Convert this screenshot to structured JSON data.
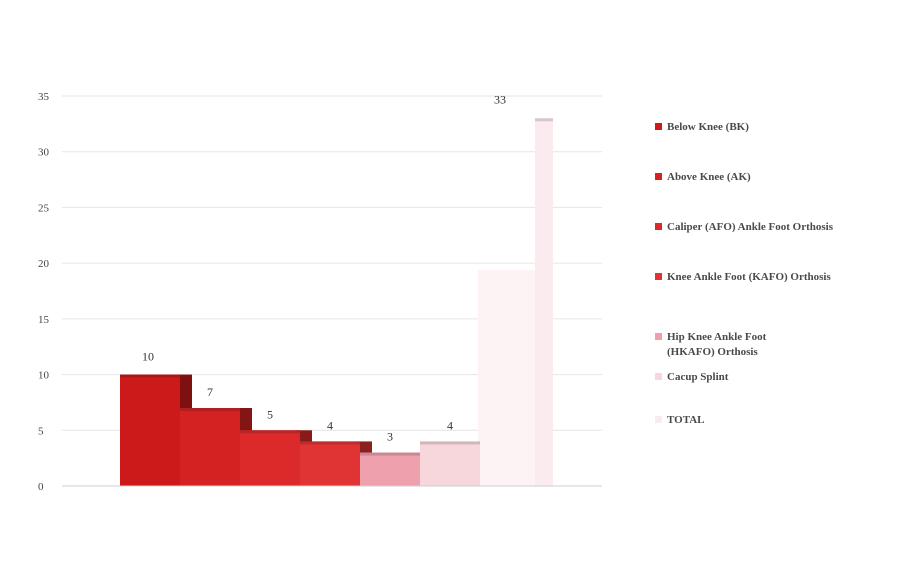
{
  "chart_data": {
    "type": "bar",
    "title": "",
    "xlabel": "",
    "ylabel": "",
    "ylim": [
      0,
      35
    ],
    "yticks": [
      0,
      5,
      10,
      15,
      20,
      25,
      30,
      35
    ],
    "grid": true,
    "legend_position": "right",
    "series": [
      {
        "name": "Below Knee (BK)",
        "value": 10,
        "label": "10",
        "color": "#cc1a1a"
      },
      {
        "name": "Above Knee (AK)",
        "value": 7,
        "label": "7",
        "color": "#d42222"
      },
      {
        "name": "Caliper (AFO) Ankle Foot Orthosis",
        "value": 5,
        "label": "5",
        "color": "#dc2a2a"
      },
      {
        "name": "Knee Ankle Foot (KAFO) Orthosis",
        "value": 4,
        "label": "4",
        "color": "#e03434"
      },
      {
        "name": "Hip Knee Ankle Foot (HKAFO) Orthosis",
        "value": 3,
        "label": "3",
        "color": "#eea0ac"
      },
      {
        "name": "Cacup Splint",
        "value": 4,
        "label": "4",
        "color": "#f7d6dc"
      },
      {
        "name": "TOTAL",
        "value": 33,
        "label": "33",
        "color": "#fbeaee"
      }
    ]
  }
}
